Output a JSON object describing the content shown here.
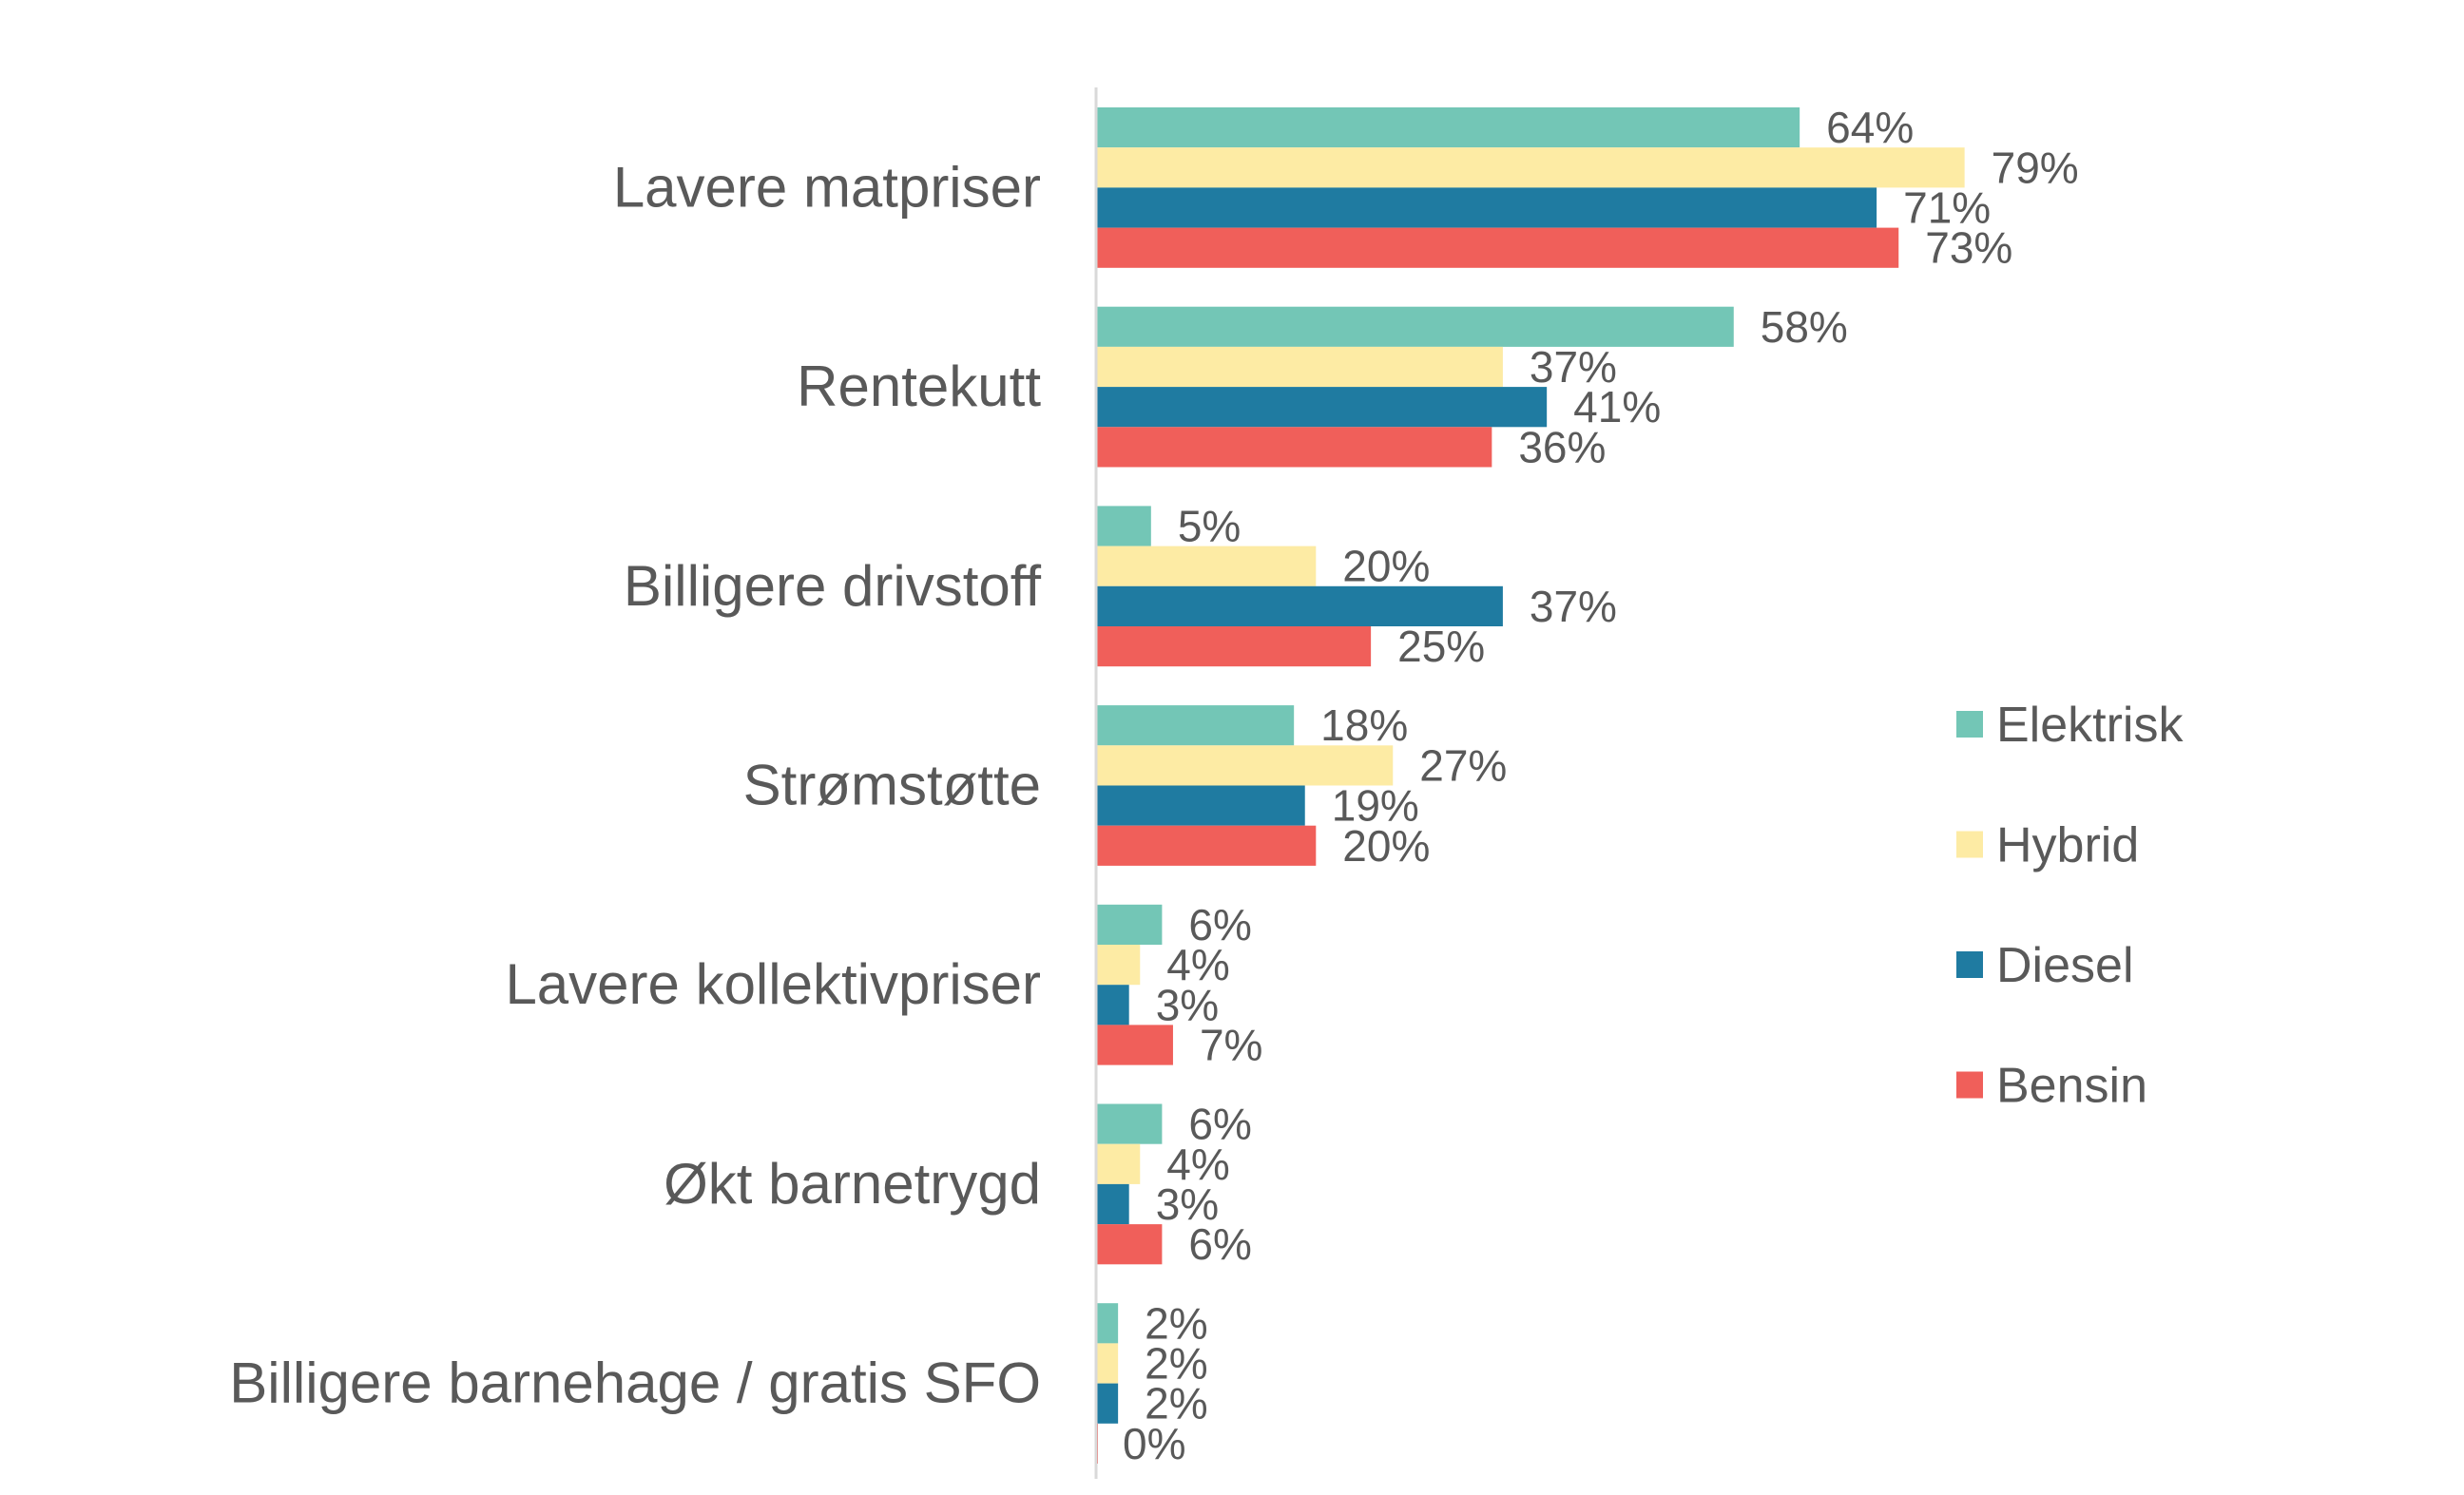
{
  "chart_data": {
    "type": "bar",
    "orientation": "horizontal",
    "categories": [
      "Lavere matpriser",
      "Rentekutt",
      "Billigere drivstoff",
      "Strømstøtte",
      "Lavere kollektivpriser",
      "Økt barnetrygd",
      "Billigere barnehage / gratis SFO"
    ],
    "series": [
      {
        "name": "Elektrisk",
        "color": "#73C6B6",
        "values": [
          64,
          58,
          5,
          18,
          6,
          6,
          2
        ]
      },
      {
        "name": "Hybrid",
        "color": "#FDEBA4",
        "values": [
          79,
          37,
          20,
          27,
          4,
          4,
          2
        ]
      },
      {
        "name": "Diesel",
        "color": "#1F7BA1",
        "values": [
          71,
          41,
          37,
          19,
          3,
          3,
          2
        ]
      },
      {
        "name": "Bensin",
        "color": "#F05F5A",
        "values": [
          73,
          36,
          25,
          20,
          7,
          6,
          0
        ]
      }
    ],
    "value_suffix": "%",
    "xlim": [
      0,
      100
    ],
    "grid": false,
    "legend_position": "right",
    "title": "",
    "xlabel": "",
    "ylabel": ""
  }
}
